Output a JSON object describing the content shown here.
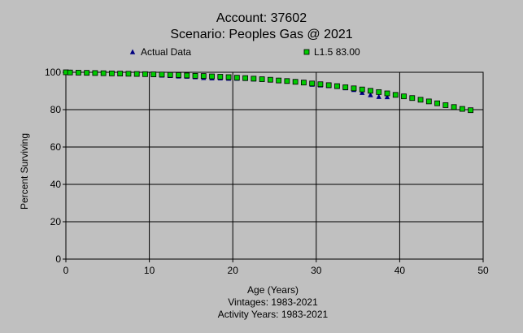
{
  "title_line1": "Account: 37602",
  "title_line2": "Scenario: Peoples Gas @ 2021",
  "colors": {
    "background": "#c0c0c0",
    "actual_marker": "#000080",
    "fit_marker": "#00cc00",
    "fit_outline": "#000000",
    "grid": "#000000"
  },
  "chart_data": {
    "type": "scatter",
    "xlabel": "Age (Years)",
    "ylabel": "Percent Surviving",
    "footnotes": [
      "Vintages: 1983-2021",
      "Activity Years: 1983-2021"
    ],
    "xlim": [
      0,
      50
    ],
    "ylim": [
      0,
      100
    ],
    "xticks": [
      0,
      10,
      20,
      30,
      40,
      50
    ],
    "yticks": [
      0,
      20,
      40,
      60,
      80,
      100
    ],
    "grid": true,
    "legend_position": "top",
    "series": [
      {
        "name": "Actual Data",
        "marker": "triangle",
        "x": [
          0,
          0.5,
          1.5,
          2.5,
          3.5,
          4.5,
          5.5,
          6.5,
          7.5,
          8.5,
          9.5,
          10.5,
          11.5,
          12.5,
          13.5,
          14.5,
          15.5,
          16.5,
          17.5,
          18.5,
          19.5,
          20.5,
          21.5,
          22.5,
          23.5,
          24.5,
          25.5,
          26.5,
          27.5,
          28.5,
          29.5,
          30.5,
          31.5,
          32.5,
          33.5,
          34.5,
          35.5,
          36.5,
          37.5,
          38.5
        ],
        "y": [
          100,
          100,
          99.8,
          99.6,
          99.5,
          99.4,
          99.3,
          99.2,
          99.1,
          99.0,
          98.8,
          98.6,
          98.4,
          98.2,
          97.9,
          97.8,
          97.5,
          97.1,
          96.9,
          96.9,
          96.7,
          96.7,
          96.6,
          96.3,
          96.1,
          95.9,
          95.6,
          95.3,
          95.0,
          94.6,
          93.5,
          93.1,
          92.8,
          92.3,
          91.6,
          90.7,
          89.1,
          87.9,
          86.9,
          86.8
        ]
      },
      {
        "name": "L1.5 83.00",
        "marker": "square",
        "x": [
          0,
          0.5,
          1.5,
          2.5,
          3.5,
          4.5,
          5.5,
          6.5,
          7.5,
          8.5,
          9.5,
          10.5,
          11.5,
          12.5,
          13.5,
          14.5,
          15.5,
          16.5,
          17.5,
          18.5,
          19.5,
          20.5,
          21.5,
          22.5,
          23.5,
          24.5,
          25.5,
          26.5,
          27.5,
          28.5,
          29.5,
          30.5,
          31.5,
          32.5,
          33.5,
          34.5,
          35.5,
          36.5,
          37.5,
          38.5,
          39.5,
          40.5,
          41.5,
          42.5,
          43.5,
          44.5,
          45.5,
          46.5,
          47.5,
          48.5
        ],
        "y": [
          100,
          99.9,
          99.8,
          99.7,
          99.6,
          99.5,
          99.4,
          99.3,
          99.2,
          99.1,
          99.0,
          98.9,
          98.8,
          98.6,
          98.5,
          98.3,
          98.1,
          98.0,
          97.8,
          97.6,
          97.4,
          97.1,
          96.9,
          96.6,
          96.3,
          96.0,
          95.6,
          95.3,
          94.9,
          94.5,
          94.0,
          93.6,
          93.1,
          92.6,
          92.0,
          91.4,
          90.8,
          90.1,
          89.4,
          88.7,
          87.9,
          87.1,
          86.2,
          85.3,
          84.4,
          83.4,
          82.4,
          81.4,
          80.4,
          79.7
        ]
      }
    ]
  }
}
